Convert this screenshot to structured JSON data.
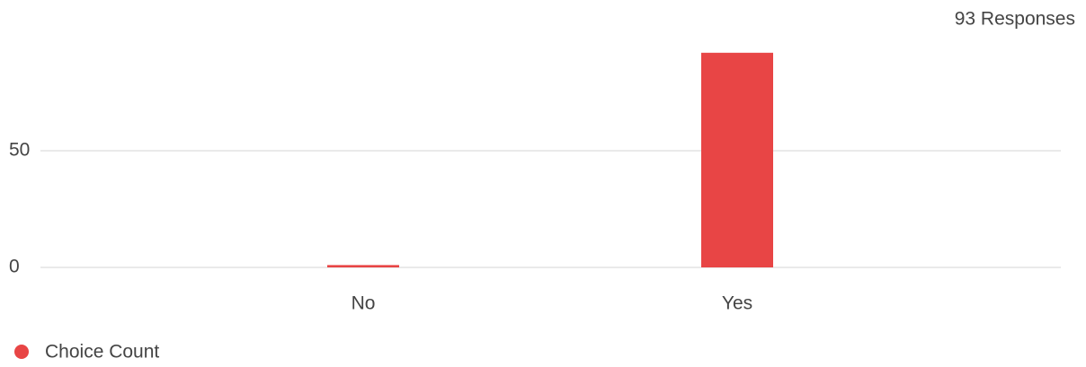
{
  "chart_data": {
    "type": "bar",
    "subtitle": "93 Responses",
    "categories": [
      "No",
      "Yes"
    ],
    "series": [
      {
        "name": "Choice Count",
        "color": "#e84545",
        "values": [
          1,
          92
        ]
      }
    ],
    "ylim": [
      0,
      100
    ],
    "yticks": [
      0,
      50
    ],
    "grid": true
  }
}
